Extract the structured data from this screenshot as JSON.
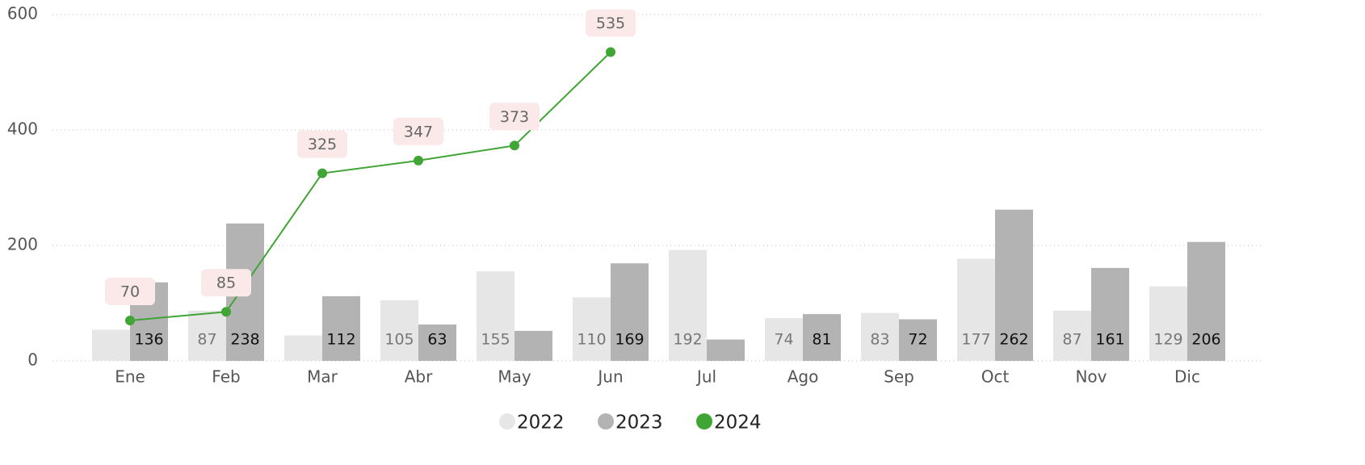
{
  "chart_data": {
    "type": "combo",
    "categories": [
      "Ene",
      "Feb",
      "Mar",
      "Abr",
      "May",
      "Jun",
      "Jul",
      "Ago",
      "Sep",
      "Oct",
      "Nov",
      "Dic"
    ],
    "series": [
      {
        "name": "2022",
        "type": "bar",
        "color": "#e6e6e6",
        "label_color": "#777777",
        "values": [
          54,
          87,
          44,
          105,
          155,
          110,
          192,
          74,
          83,
          177,
          87,
          129
        ],
        "value_labels": [
          null,
          "87",
          null,
          "105",
          "155",
          "110",
          "192",
          "74",
          "83",
          "177",
          "87",
          "129"
        ]
      },
      {
        "name": "2023",
        "type": "bar",
        "color": "#b3b3b3",
        "label_color": "#111111",
        "values": [
          136,
          238,
          112,
          63,
          52,
          169,
          37,
          81,
          72,
          262,
          161,
          206
        ],
        "value_labels": [
          "136",
          "238",
          "112",
          "63",
          null,
          "169",
          null,
          "81",
          "72",
          "262",
          "161",
          "206"
        ]
      },
      {
        "name": "2024",
        "type": "line",
        "color": "#3fa535",
        "label_color": "#666666",
        "values": [
          70,
          85,
          325,
          347,
          373,
          535,
          null,
          null,
          null,
          null,
          null,
          null
        ]
      }
    ],
    "ylim": [
      0,
      600
    ],
    "yticks": [
      0,
      200,
      400,
      600
    ],
    "grid": true,
    "legend": "bottom"
  }
}
